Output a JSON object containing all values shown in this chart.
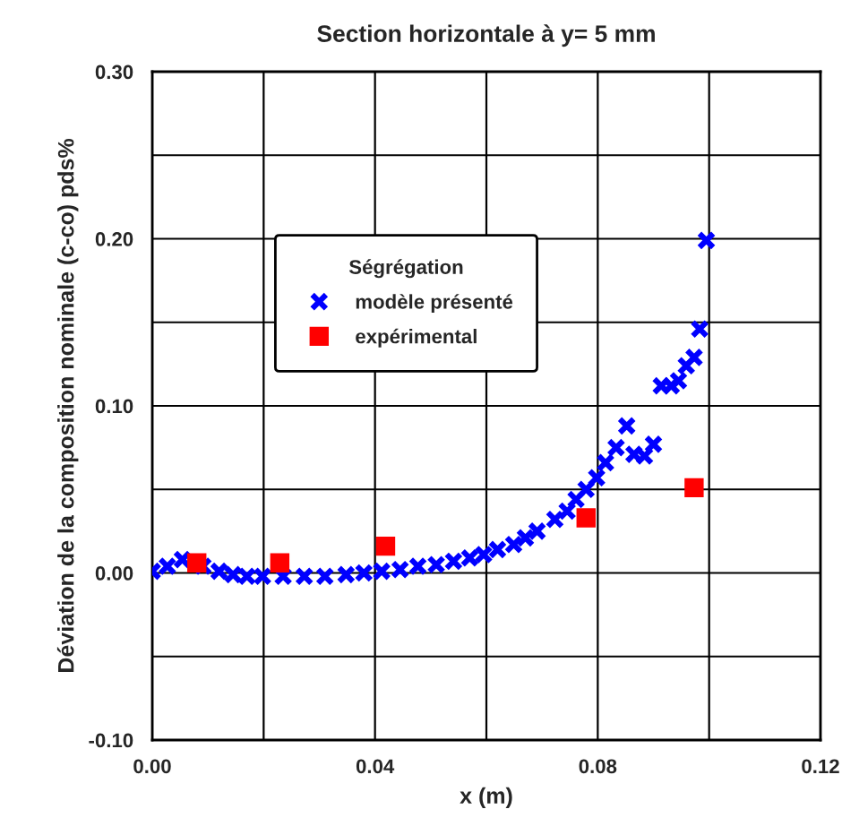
{
  "chart_data": {
    "type": "scatter",
    "title": "Section horizontale à y= 5 mm",
    "xlabel": "x (m)",
    "ylabel": "Déviation de la composition nominale (c-co) pds%",
    "legend_title": "Ségrégation",
    "legend": "top",
    "grid": true,
    "xlim": [
      0,
      0.12
    ],
    "ylim": [
      -0.1,
      0.3
    ],
    "xticks": [
      {
        "value": 0,
        "label": "0.00"
      },
      {
        "value": 0.02,
        "label": null
      },
      {
        "value": 0.04,
        "label": "0.04"
      },
      {
        "value": 0.06,
        "label": null
      },
      {
        "value": 0.08,
        "label": "0.08"
      },
      {
        "value": 0.1,
        "label": null
      },
      {
        "value": 0.12,
        "label": "0.12"
      }
    ],
    "yticks": [
      {
        "value": -0.1,
        "label": "-0.10"
      },
      {
        "value": -0.05,
        "label": null
      },
      {
        "value": 0,
        "label": "0.00"
      },
      {
        "value": 0.05,
        "label": null
      },
      {
        "value": 0.1,
        "label": "0.10"
      },
      {
        "value": 0.15,
        "label": null
      },
      {
        "value": 0.2,
        "label": "0.20"
      },
      {
        "value": 0.25,
        "label": null
      },
      {
        "value": 0.3,
        "label": "0.30"
      }
    ],
    "series": [
      {
        "name": "modèle présenté",
        "color": "#0000ff",
        "marker": "cross",
        "x": [
          0,
          0.0027,
          0.0054,
          0.0091,
          0.012,
          0.0145,
          0.017,
          0.0198,
          0.0235,
          0.0273,
          0.031,
          0.0348,
          0.038,
          0.0412,
          0.0445,
          0.0477,
          0.051,
          0.0541,
          0.057,
          0.0595,
          0.062,
          0.0649,
          0.067,
          0.0691,
          0.0723,
          0.0745,
          0.0761,
          0.0779,
          0.0798,
          0.0814,
          0.0833,
          0.0852,
          0.0865,
          0.0884,
          0.09,
          0.0914,
          0.0932,
          0.0945,
          0.0959,
          0.0973,
          0.0983,
          0.0995
        ],
        "values": [
          0.001,
          0.004,
          0.008,
          0.004,
          0.001,
          -0.001,
          -0.002,
          -0.002,
          -0.002,
          -0.002,
          -0.002,
          -0.001,
          0,
          0.001,
          0.002,
          0.004,
          0.005,
          0.007,
          0.009,
          0.011,
          0.014,
          0.017,
          0.021,
          0.025,
          0.032,
          0.037,
          0.044,
          0.05,
          0.057,
          0.066,
          0.075,
          0.088,
          0.071,
          0.07,
          0.077,
          0.112,
          0.112,
          0.115,
          0.124,
          0.129,
          0.146,
          0.199
        ]
      },
      {
        "name": "expérimental",
        "color": "#ff0000",
        "marker": "square",
        "x": [
          0.008,
          0.0229,
          0.0419,
          0.0779,
          0.0973
        ],
        "values": [
          0.006,
          0.006,
          0.016,
          0.033,
          0.051
        ]
      }
    ]
  }
}
